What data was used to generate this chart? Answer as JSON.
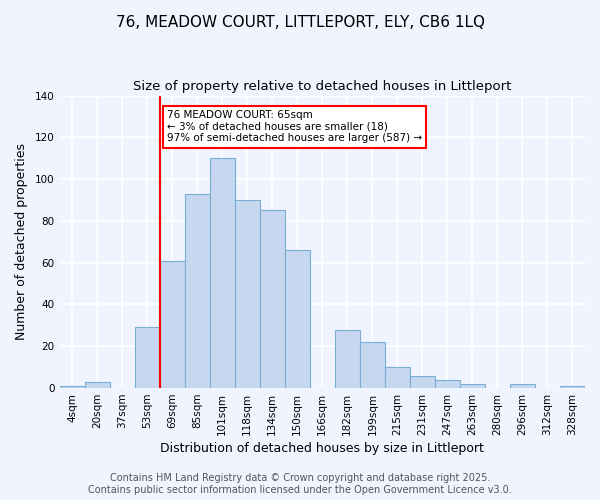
{
  "title": "76, MEADOW COURT, LITTLEPORT, ELY, CB6 1LQ",
  "subtitle": "Size of property relative to detached houses in Littleport",
  "xlabel": "Distribution of detached houses by size in Littleport",
  "ylabel": "Number of detached properties",
  "bar_labels": [
    "4sqm",
    "20sqm",
    "37sqm",
    "53sqm",
    "69sqm",
    "85sqm",
    "101sqm",
    "118sqm",
    "134sqm",
    "150sqm",
    "166sqm",
    "182sqm",
    "199sqm",
    "215sqm",
    "231sqm",
    "247sqm",
    "263sqm",
    "280sqm",
    "296sqm",
    "312sqm",
    "328sqm"
  ],
  "bar_values": [
    1,
    3,
    0,
    29,
    61,
    93,
    110,
    90,
    85,
    66,
    0,
    28,
    22,
    10,
    6,
    4,
    2,
    0,
    2,
    0,
    1
  ],
  "bar_color": "#c5d8f0",
  "bar_edge_color": "#7aaed4",
  "ylim": [
    0,
    140
  ],
  "yticks": [
    0,
    20,
    40,
    60,
    80,
    100,
    120,
    140
  ],
  "vline_bar_index": 4,
  "property_line_label": "76 MEADOW COURT: 65sqm",
  "annotation_line1": "← 3% of detached houses are smaller (18)",
  "annotation_line2": "97% of semi-detached houses are larger (587) →",
  "footer1": "Contains HM Land Registry data © Crown copyright and database right 2025.",
  "footer2": "Contains public sector information licensed under the Open Government Licence v3.0.",
  "background_color": "#f0f4ff",
  "grid_color": "#ffffff",
  "title_fontsize": 11,
  "subtitle_fontsize": 9.5,
  "axis_label_fontsize": 9,
  "tick_fontsize": 7.5,
  "footer_fontsize": 7
}
